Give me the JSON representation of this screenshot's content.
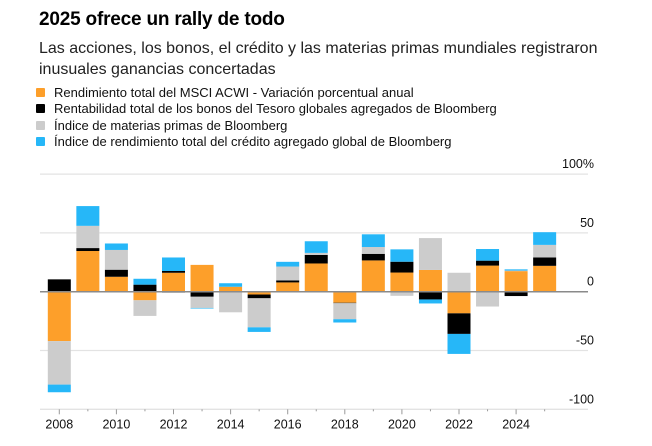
{
  "chart_data": {
    "type": "bar",
    "stacked": true,
    "title": "2025 ofrece un rally de todo",
    "subtitle": "Las acciones, los bonos, el crédito y las materias primas mundiales registraron inusuales ganancias concertadas",
    "xlabel": "",
    "ylabel": "",
    "ylim": [
      -100,
      100
    ],
    "y_ticks": [
      {
        "value": 100,
        "label": "100%"
      },
      {
        "value": 50,
        "label": "50"
      },
      {
        "value": 0,
        "label": "0"
      },
      {
        "value": -50,
        "label": "-50"
      },
      {
        "value": -100,
        "label": "-100"
      }
    ],
    "x_tick_labels": [
      "2008",
      "2010",
      "2012",
      "2014",
      "2016",
      "2018",
      "2020",
      "2022",
      "2024"
    ],
    "categories": [
      2008,
      2009,
      2010,
      2011,
      2012,
      2013,
      2014,
      2015,
      2016,
      2017,
      2018,
      2019,
      2020,
      2021,
      2022,
      2023,
      2024,
      2025
    ],
    "legend_position": "top-left",
    "grid": true,
    "series": [
      {
        "name": "Rendimiento total del MSCI ACWI - Variación porcentual anual",
        "color": "#fd9f2a",
        "values": [
          -42,
          34.6,
          12.7,
          -7.3,
          16.1,
          22.8,
          4.2,
          -2.4,
          7.9,
          24.0,
          -9.4,
          26.6,
          16.3,
          18.5,
          -18.4,
          22.2,
          17.5,
          22.0
        ]
      },
      {
        "name": "Rentabilidad total de los bonos del Tesoro globales agregados de Bloomberg",
        "color": "#000000",
        "values": [
          10.5,
          2.5,
          6.0,
          6.0,
          1.5,
          -4.3,
          -0.5,
          -3.2,
          1.7,
          7.3,
          -0.4,
          5.6,
          9.2,
          -6.6,
          -17.5,
          4.2,
          -3.7,
          7.1
        ]
      },
      {
        "name": "Índice de materias primas de Bloomberg",
        "color": "#cccccc",
        "values": [
          -37,
          18.9,
          16.8,
          -13.3,
          -1.1,
          -9.5,
          -17.0,
          -24.7,
          11.8,
          1.7,
          -13.6,
          5.8,
          -3.5,
          27.1,
          16.1,
          -12.6,
          0.5,
          10.7
        ]
      },
      {
        "name": "Índice de rendimiento total del crédito agregado global de Bloomberg",
        "color": "#26b7f8",
        "values": [
          -6.5,
          16.8,
          5.5,
          5.0,
          11.5,
          -0.5,
          3.0,
          -3.9,
          4.0,
          9.9,
          -2.8,
          10.8,
          10.5,
          -3.4,
          -17.0,
          9.9,
          1.0,
          10.8
        ]
      }
    ]
  },
  "legend": [
    {
      "label": "Rendimiento total del MSCI ACWI - Variación porcentual anual",
      "color": "#fd9f2a"
    },
    {
      "label": "Rentabilidad total de los bonos del Tesoro globales agregados de Bloomberg",
      "color": "#000000"
    },
    {
      "label": "Índice de materias primas de Bloomberg",
      "color": "#cccccc"
    },
    {
      "label": "Índice de rendimiento total del crédito agregado global de Bloomberg",
      "color": "#26b7f8"
    }
  ]
}
